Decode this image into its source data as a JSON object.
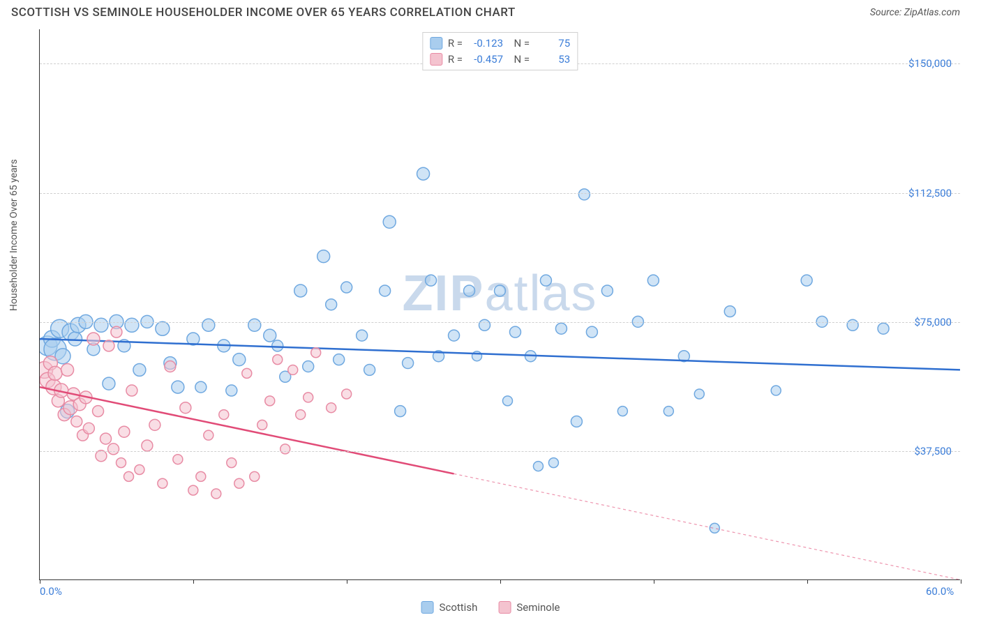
{
  "title": "SCOTTISH VS SEMINOLE HOUSEHOLDER INCOME OVER 65 YEARS CORRELATION CHART",
  "source": "Source: ZipAtlas.com",
  "watermark": {
    "prefix": "ZIP",
    "suffix": "atlas"
  },
  "chart": {
    "type": "scatter",
    "xlim": [
      0,
      60
    ],
    "ylim": [
      0,
      160000
    ],
    "x_ticks": [
      0,
      10,
      20,
      30,
      40,
      50,
      60
    ],
    "x_tick_labels_shown": {
      "0": "0.0%",
      "60": "60.0%"
    },
    "y_gridlines": [
      37500,
      75000,
      112500,
      150000
    ],
    "y_tick_labels": [
      "$37,500",
      "$75,000",
      "$112,500",
      "$150,000"
    ],
    "y_axis_label": "Householder Income Over 65 years",
    "background_color": "#ffffff",
    "grid_color": "#d0d0d0",
    "axis_color": "#333333",
    "tick_label_color": "#3b7dd8",
    "series": [
      {
        "name": "Scottish",
        "color_fill": "#a9cdee",
        "color_stroke": "#6fa8e0",
        "line_color": "#2f6fd0",
        "r_stat": "-0.123",
        "n_stat": "75",
        "trend": {
          "x1": 0,
          "y1": 70000,
          "x2": 60,
          "y2": 61000,
          "dashed_from": null
        },
        "points": [
          {
            "x": 0.5,
            "y": 68000,
            "r": 14
          },
          {
            "x": 0.8,
            "y": 70000,
            "r": 12
          },
          {
            "x": 1.0,
            "y": 67000,
            "r": 16
          },
          {
            "x": 1.3,
            "y": 73000,
            "r": 13
          },
          {
            "x": 1.5,
            "y": 65000,
            "r": 11
          },
          {
            "x": 1.8,
            "y": 49000,
            "r": 10
          },
          {
            "x": 2.0,
            "y": 72000,
            "r": 12
          },
          {
            "x": 2.3,
            "y": 70000,
            "r": 10
          },
          {
            "x": 2.5,
            "y": 74000,
            "r": 11
          },
          {
            "x": 3.0,
            "y": 75000,
            "r": 10
          },
          {
            "x": 3.5,
            "y": 67000,
            "r": 9
          },
          {
            "x": 4.0,
            "y": 74000,
            "r": 10
          },
          {
            "x": 4.5,
            "y": 57000,
            "r": 9
          },
          {
            "x": 5.0,
            "y": 75000,
            "r": 10
          },
          {
            "x": 5.5,
            "y": 68000,
            "r": 9
          },
          {
            "x": 6.0,
            "y": 74000,
            "r": 10
          },
          {
            "x": 6.5,
            "y": 61000,
            "r": 9
          },
          {
            "x": 7.0,
            "y": 75000,
            "r": 9
          },
          {
            "x": 8.0,
            "y": 73000,
            "r": 10
          },
          {
            "x": 8.5,
            "y": 63000,
            "r": 9
          },
          {
            "x": 9.0,
            "y": 56000,
            "r": 9
          },
          {
            "x": 10.0,
            "y": 70000,
            "r": 9
          },
          {
            "x": 10.5,
            "y": 56000,
            "r": 8
          },
          {
            "x": 11.0,
            "y": 74000,
            "r": 9
          },
          {
            "x": 12.0,
            "y": 68000,
            "r": 9
          },
          {
            "x": 12.5,
            "y": 55000,
            "r": 8
          },
          {
            "x": 13.0,
            "y": 64000,
            "r": 9
          },
          {
            "x": 14.0,
            "y": 74000,
            "r": 9
          },
          {
            "x": 15.0,
            "y": 71000,
            "r": 9
          },
          {
            "x": 15.5,
            "y": 68000,
            "r": 8
          },
          {
            "x": 16.0,
            "y": 59000,
            "r": 8
          },
          {
            "x": 17.0,
            "y": 84000,
            "r": 9
          },
          {
            "x": 17.5,
            "y": 62000,
            "r": 8
          },
          {
            "x": 18.5,
            "y": 94000,
            "r": 9
          },
          {
            "x": 19.0,
            "y": 80000,
            "r": 8
          },
          {
            "x": 19.5,
            "y": 64000,
            "r": 8
          },
          {
            "x": 20.0,
            "y": 85000,
            "r": 8
          },
          {
            "x": 21.0,
            "y": 71000,
            "r": 8
          },
          {
            "x": 21.5,
            "y": 61000,
            "r": 8
          },
          {
            "x": 22.5,
            "y": 84000,
            "r": 8
          },
          {
            "x": 22.8,
            "y": 104000,
            "r": 9
          },
          {
            "x": 23.5,
            "y": 49000,
            "r": 8
          },
          {
            "x": 24.0,
            "y": 63000,
            "r": 8
          },
          {
            "x": 25.0,
            "y": 118000,
            "r": 9
          },
          {
            "x": 25.5,
            "y": 87000,
            "r": 8
          },
          {
            "x": 26.0,
            "y": 65000,
            "r": 8
          },
          {
            "x": 27.0,
            "y": 71000,
            "r": 8
          },
          {
            "x": 28.0,
            "y": 84000,
            "r": 8
          },
          {
            "x": 28.5,
            "y": 65000,
            "r": 7
          },
          {
            "x": 29.0,
            "y": 74000,
            "r": 8
          },
          {
            "x": 30.0,
            "y": 84000,
            "r": 8
          },
          {
            "x": 30.5,
            "y": 52000,
            "r": 7
          },
          {
            "x": 31.0,
            "y": 72000,
            "r": 8
          },
          {
            "x": 32.0,
            "y": 65000,
            "r": 8
          },
          {
            "x": 32.5,
            "y": 33000,
            "r": 7
          },
          {
            "x": 33.0,
            "y": 87000,
            "r": 8
          },
          {
            "x": 33.5,
            "y": 34000,
            "r": 7
          },
          {
            "x": 34.0,
            "y": 73000,
            "r": 8
          },
          {
            "x": 35.0,
            "y": 46000,
            "r": 8
          },
          {
            "x": 35.5,
            "y": 112000,
            "r": 8
          },
          {
            "x": 36.0,
            "y": 72000,
            "r": 8
          },
          {
            "x": 37.0,
            "y": 84000,
            "r": 8
          },
          {
            "x": 38.0,
            "y": 49000,
            "r": 7
          },
          {
            "x": 39.0,
            "y": 75000,
            "r": 8
          },
          {
            "x": 40.0,
            "y": 87000,
            "r": 8
          },
          {
            "x": 41.0,
            "y": 49000,
            "r": 7
          },
          {
            "x": 42.0,
            "y": 65000,
            "r": 8
          },
          {
            "x": 43.0,
            "y": 54000,
            "r": 7
          },
          {
            "x": 44.0,
            "y": 15000,
            "r": 7
          },
          {
            "x": 45.0,
            "y": 78000,
            "r": 8
          },
          {
            "x": 48.0,
            "y": 55000,
            "r": 7
          },
          {
            "x": 50.0,
            "y": 87000,
            "r": 8
          },
          {
            "x": 51.0,
            "y": 75000,
            "r": 8
          },
          {
            "x": 53.0,
            "y": 74000,
            "r": 8
          },
          {
            "x": 55.0,
            "y": 73000,
            "r": 8
          }
        ]
      },
      {
        "name": "Seminole",
        "color_fill": "#f4c3cf",
        "color_stroke": "#e88ba4",
        "line_color": "#e14b77",
        "r_stat": "-0.457",
        "n_stat": "53",
        "trend": {
          "x1": 0,
          "y1": 56000,
          "x2": 60,
          "y2": 0,
          "dashed_from": 27
        },
        "points": [
          {
            "x": 0.3,
            "y": 61000,
            "r": 12
          },
          {
            "x": 0.5,
            "y": 58000,
            "r": 11
          },
          {
            "x": 0.7,
            "y": 63000,
            "r": 10
          },
          {
            "x": 0.9,
            "y": 56000,
            "r": 11
          },
          {
            "x": 1.0,
            "y": 60000,
            "r": 10
          },
          {
            "x": 1.2,
            "y": 52000,
            "r": 9
          },
          {
            "x": 1.4,
            "y": 55000,
            "r": 10
          },
          {
            "x": 1.6,
            "y": 48000,
            "r": 9
          },
          {
            "x": 1.8,
            "y": 61000,
            "r": 9
          },
          {
            "x": 2.0,
            "y": 50000,
            "r": 10
          },
          {
            "x": 2.2,
            "y": 54000,
            "r": 9
          },
          {
            "x": 2.4,
            "y": 46000,
            "r": 8
          },
          {
            "x": 2.6,
            "y": 51000,
            "r": 9
          },
          {
            "x": 2.8,
            "y": 42000,
            "r": 8
          },
          {
            "x": 3.0,
            "y": 53000,
            "r": 9
          },
          {
            "x": 3.2,
            "y": 44000,
            "r": 8
          },
          {
            "x": 3.5,
            "y": 70000,
            "r": 9
          },
          {
            "x": 3.8,
            "y": 49000,
            "r": 8
          },
          {
            "x": 4.0,
            "y": 36000,
            "r": 8
          },
          {
            "x": 4.3,
            "y": 41000,
            "r": 8
          },
          {
            "x": 4.5,
            "y": 68000,
            "r": 8
          },
          {
            "x": 4.8,
            "y": 38000,
            "r": 8
          },
          {
            "x": 5.0,
            "y": 72000,
            "r": 8
          },
          {
            "x": 5.3,
            "y": 34000,
            "r": 7
          },
          {
            "x": 5.5,
            "y": 43000,
            "r": 8
          },
          {
            "x": 5.8,
            "y": 30000,
            "r": 7
          },
          {
            "x": 6.0,
            "y": 55000,
            "r": 8
          },
          {
            "x": 6.5,
            "y": 32000,
            "r": 7
          },
          {
            "x": 7.0,
            "y": 39000,
            "r": 8
          },
          {
            "x": 7.5,
            "y": 45000,
            "r": 8
          },
          {
            "x": 8.0,
            "y": 28000,
            "r": 7
          },
          {
            "x": 8.5,
            "y": 62000,
            "r": 8
          },
          {
            "x": 9.0,
            "y": 35000,
            "r": 7
          },
          {
            "x": 9.5,
            "y": 50000,
            "r": 8
          },
          {
            "x": 10.0,
            "y": 26000,
            "r": 7
          },
          {
            "x": 10.5,
            "y": 30000,
            "r": 7
          },
          {
            "x": 11.0,
            "y": 42000,
            "r": 7
          },
          {
            "x": 11.5,
            "y": 25000,
            "r": 7
          },
          {
            "x": 12.0,
            "y": 48000,
            "r": 7
          },
          {
            "x": 12.5,
            "y": 34000,
            "r": 7
          },
          {
            "x": 13.0,
            "y": 28000,
            "r": 7
          },
          {
            "x": 13.5,
            "y": 60000,
            "r": 7
          },
          {
            "x": 14.0,
            "y": 30000,
            "r": 7
          },
          {
            "x": 14.5,
            "y": 45000,
            "r": 7
          },
          {
            "x": 15.0,
            "y": 52000,
            "r": 7
          },
          {
            "x": 15.5,
            "y": 64000,
            "r": 7
          },
          {
            "x": 16.0,
            "y": 38000,
            "r": 7
          },
          {
            "x": 16.5,
            "y": 61000,
            "r": 7
          },
          {
            "x": 17.0,
            "y": 48000,
            "r": 7
          },
          {
            "x": 17.5,
            "y": 53000,
            "r": 7
          },
          {
            "x": 18.0,
            "y": 66000,
            "r": 7
          },
          {
            "x": 19.0,
            "y": 50000,
            "r": 7
          },
          {
            "x": 20.0,
            "y": 54000,
            "r": 7
          }
        ]
      }
    ]
  },
  "stats_box": {
    "rows": [
      {
        "swatch": "#a9cdee",
        "border": "#6fa8e0",
        "r": "-0.123",
        "n": "75"
      },
      {
        "swatch": "#f4c3cf",
        "border": "#e88ba4",
        "r": "-0.457",
        "n": "53"
      }
    ],
    "labels": {
      "r": "R =",
      "n": "N ="
    }
  },
  "legend": [
    {
      "swatch": "#a9cdee",
      "border": "#6fa8e0",
      "label": "Scottish"
    },
    {
      "swatch": "#f4c3cf",
      "border": "#e88ba4",
      "label": "Seminole"
    }
  ]
}
